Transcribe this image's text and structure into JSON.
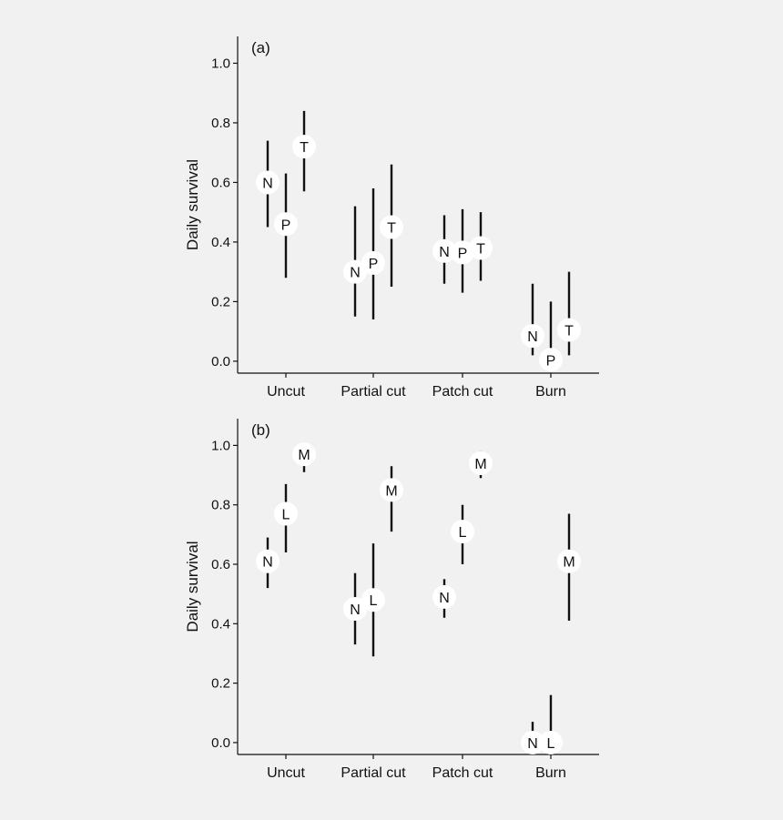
{
  "colors": {
    "background": "#f1f1f1",
    "axis": "#111111",
    "marker_fill": "#ffffff",
    "text": "#111111"
  },
  "chart_data": [
    {
      "type": "scatter",
      "panel_label": "(a)",
      "ylabel": "Daily survival",
      "xlabel": "",
      "categories": [
        "Uncut",
        "Partial cut",
        "Patch cut",
        "Burn"
      ],
      "yticks": [
        "0.0",
        "0.2",
        "0.4",
        "0.6",
        "0.8",
        "1.0"
      ],
      "ylim": [
        -0.04,
        1.09
      ],
      "series": [
        {
          "name": "N",
          "points": [
            {
              "category": "Uncut",
              "value": 0.6,
              "low": 0.45,
              "high": 0.74
            },
            {
              "category": "Partial cut",
              "value": 0.3,
              "low": 0.15,
              "high": 0.52
            },
            {
              "category": "Patch cut",
              "value": 0.37,
              "low": 0.26,
              "high": 0.49
            },
            {
              "category": "Burn",
              "value": 0.085,
              "low": 0.02,
              "high": 0.26
            }
          ]
        },
        {
          "name": "P",
          "points": [
            {
              "category": "Uncut",
              "value": 0.46,
              "low": 0.28,
              "high": 0.63
            },
            {
              "category": "Partial cut",
              "value": 0.33,
              "low": 0.14,
              "high": 0.58
            },
            {
              "category": "Patch cut",
              "value": 0.365,
              "low": 0.23,
              "high": 0.51
            },
            {
              "category": "Burn",
              "value": 0.005,
              "low": 0.0,
              "high": 0.2
            }
          ]
        },
        {
          "name": "T",
          "points": [
            {
              "category": "Uncut",
              "value": 0.72,
              "low": 0.57,
              "high": 0.84
            },
            {
              "category": "Partial cut",
              "value": 0.45,
              "low": 0.25,
              "high": 0.66
            },
            {
              "category": "Patch cut",
              "value": 0.38,
              "low": 0.27,
              "high": 0.5
            },
            {
              "category": "Burn",
              "value": 0.105,
              "low": 0.02,
              "high": 0.3
            }
          ]
        }
      ]
    },
    {
      "type": "scatter",
      "panel_label": "(b)",
      "ylabel": "Daily survival",
      "xlabel": "",
      "categories": [
        "Uncut",
        "Partial cut",
        "Patch cut",
        "Burn"
      ],
      "yticks": [
        "0.0",
        "0.2",
        "0.4",
        "0.6",
        "0.8",
        "1.0"
      ],
      "ylim": [
        -0.04,
        1.09
      ],
      "series": [
        {
          "name": "N",
          "points": [
            {
              "category": "Uncut",
              "value": 0.61,
              "low": 0.52,
              "high": 0.69
            },
            {
              "category": "Partial cut",
              "value": 0.45,
              "low": 0.33,
              "high": 0.57
            },
            {
              "category": "Patch cut",
              "value": 0.49,
              "low": 0.42,
              "high": 0.55
            },
            {
              "category": "Burn",
              "value": 0.0,
              "low": 0.0,
              "high": 0.07
            }
          ]
        },
        {
          "name": "L",
          "points": [
            {
              "category": "Uncut",
              "value": 0.77,
              "low": 0.64,
              "high": 0.87
            },
            {
              "category": "Partial cut",
              "value": 0.48,
              "low": 0.29,
              "high": 0.67
            },
            {
              "category": "Patch cut",
              "value": 0.71,
              "low": 0.6,
              "high": 0.8
            },
            {
              "category": "Burn",
              "value": 0.0,
              "low": 0.0,
              "high": 0.16
            }
          ]
        },
        {
          "name": "M",
          "points": [
            {
              "category": "Uncut",
              "value": 0.97,
              "low": 0.91,
              "high": 1.0
            },
            {
              "category": "Partial cut",
              "value": 0.85,
              "low": 0.71,
              "high": 0.93
            },
            {
              "category": "Patch cut",
              "value": 0.94,
              "low": 0.89,
              "high": 0.98
            },
            {
              "category": "Burn",
              "value": 0.61,
              "low": 0.41,
              "high": 0.77
            }
          ]
        }
      ]
    }
  ]
}
